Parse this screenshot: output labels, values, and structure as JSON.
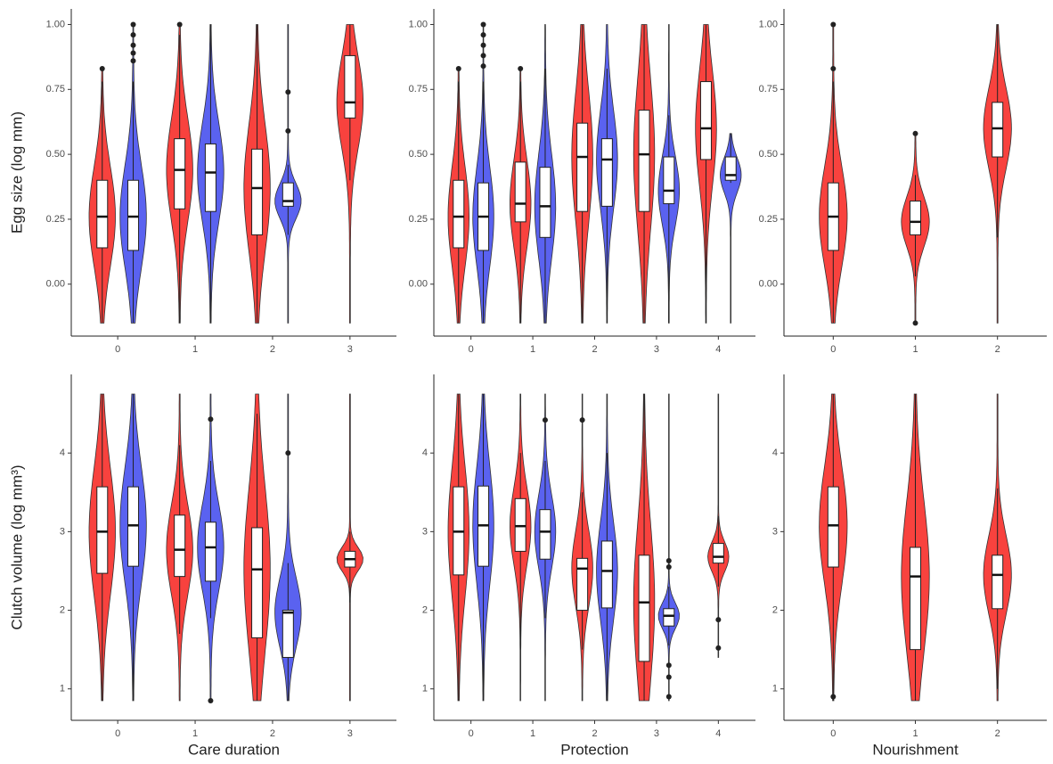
{
  "chart_data": [
    {
      "type": "violin",
      "ylabel": "Egg size (log mm)",
      "categories": [
        "0",
        "1",
        "2",
        "3"
      ],
      "ylim": [
        -0.2,
        1.06
      ],
      "yticks": [
        {
          "value": 0,
          "label": "0.00"
        },
        {
          "value": 0.25,
          "label": "0.25"
        },
        {
          "value": 0.5,
          "label": "0.50"
        },
        {
          "value": 0.75,
          "label": "0.75"
        },
        {
          "value": 1,
          "label": "1.00"
        }
      ],
      "series": [
        {
          "color": "#f8423e",
          "boxes": [
            {
              "range": [
                -0.15,
                0.83
              ],
              "whisker_low": -0.15,
              "q1": 0.14,
              "median": 0.26,
              "q3": 0.4,
              "whisker_high": 0.78,
              "outliers": [
                0.83
              ]
            },
            {
              "range": [
                -0.15,
                1.0
              ],
              "whisker_low": -0.15,
              "q1": 0.29,
              "median": 0.44,
              "q3": 0.56,
              "whisker_high": 0.96,
              "outliers": [
                1.0
              ]
            },
            {
              "range": [
                -0.15,
                1.0
              ],
              "whisker_low": -0.15,
              "q1": 0.19,
              "median": 0.37,
              "q3": 0.52,
              "whisker_high": 1.0,
              "outliers": []
            },
            {
              "range": [
                -0.15,
                1.0
              ],
              "whisker_low": 0.4,
              "q1": 0.64,
              "median": 0.7,
              "q3": 0.88,
              "whisker_high": 1.0,
              "outliers": []
            }
          ]
        },
        {
          "color": "#5a62f0",
          "boxes": [
            {
              "range": [
                -0.15,
                1.0
              ],
              "whisker_low": -0.15,
              "q1": 0.13,
              "median": 0.26,
              "q3": 0.4,
              "whisker_high": 0.78,
              "outliers": [
                0.86,
                0.89,
                0.92,
                0.96,
                1.0
              ]
            },
            {
              "range": [
                -0.15,
                1.0
              ],
              "whisker_low": -0.15,
              "q1": 0.28,
              "median": 0.43,
              "q3": 0.54,
              "whisker_high": 1.0,
              "outliers": []
            },
            {
              "range": [
                -0.15,
                1.0
              ],
              "whisker_low": 0.19,
              "q1": 0.3,
              "median": 0.32,
              "q3": 0.39,
              "whisker_high": 0.46,
              "outliers": [
                0.59,
                0.74
              ]
            },
            null
          ]
        }
      ]
    },
    {
      "type": "violin",
      "categories": [
        "0",
        "1",
        "2",
        "3",
        "4"
      ],
      "ylim": [
        -0.2,
        1.06
      ],
      "yticks": [
        {
          "value": 0,
          "label": "0.00"
        },
        {
          "value": 0.25,
          "label": "0.25"
        },
        {
          "value": 0.5,
          "label": "0.50"
        },
        {
          "value": 0.75,
          "label": "0.75"
        },
        {
          "value": 1,
          "label": "1.00"
        }
      ],
      "series": [
        {
          "color": "#f8423e",
          "boxes": [
            {
              "range": [
                -0.15,
                0.83
              ],
              "whisker_low": -0.15,
              "q1": 0.14,
              "median": 0.26,
              "q3": 0.4,
              "whisker_high": 0.78,
              "outliers": [
                0.83
              ]
            },
            {
              "range": [
                -0.15,
                0.83
              ],
              "whisker_low": -0.15,
              "q1": 0.24,
              "median": 0.31,
              "q3": 0.47,
              "whisker_high": 0.78,
              "outliers": [
                0.83
              ]
            },
            {
              "range": [
                -0.15,
                1.0
              ],
              "whisker_low": -0.15,
              "q1": 0.28,
              "median": 0.49,
              "q3": 0.62,
              "whisker_high": 1.0,
              "outliers": []
            },
            {
              "range": [
                -0.15,
                1.0
              ],
              "whisker_low": -0.15,
              "q1": 0.28,
              "median": 0.5,
              "q3": 0.67,
              "whisker_high": 1.0,
              "outliers": []
            },
            {
              "range": [
                -0.15,
                1.0
              ],
              "whisker_low": -0.15,
              "q1": 0.48,
              "median": 0.6,
              "q3": 0.78,
              "whisker_high": 1.0,
              "outliers": []
            }
          ]
        },
        {
          "color": "#5a62f0",
          "boxes": [
            {
              "range": [
                -0.15,
                1.0
              ],
              "whisker_low": -0.15,
              "q1": 0.13,
              "median": 0.26,
              "q3": 0.39,
              "whisker_high": 0.78,
              "outliers": [
                0.84,
                0.88,
                0.92,
                0.96,
                1.0
              ]
            },
            {
              "range": [
                -0.15,
                1.0
              ],
              "whisker_low": -0.15,
              "q1": 0.18,
              "median": 0.3,
              "q3": 0.45,
              "whisker_high": 0.83,
              "outliers": []
            },
            {
              "range": [
                -0.15,
                1.0
              ],
              "whisker_low": -0.15,
              "q1": 0.3,
              "median": 0.48,
              "q3": 0.56,
              "whisker_high": 0.83,
              "outliers": []
            },
            {
              "range": [
                -0.15,
                1.0
              ],
              "whisker_low": -0.15,
              "q1": 0.31,
              "median": 0.36,
              "q3": 0.49,
              "whisker_high": 0.65,
              "outliers": []
            },
            {
              "range": [
                -0.15,
                0.58
              ],
              "whisker_low": 0.39,
              "q1": 0.4,
              "median": 0.42,
              "q3": 0.49,
              "whisker_high": 0.58,
              "outliers": []
            }
          ]
        }
      ]
    },
    {
      "type": "violin",
      "categories": [
        "0",
        "1",
        "2"
      ],
      "ylim": [
        -0.2,
        1.06
      ],
      "yticks": [
        {
          "value": 0,
          "label": "0.00"
        },
        {
          "value": 0.25,
          "label": "0.25"
        },
        {
          "value": 0.5,
          "label": "0.50"
        },
        {
          "value": 0.75,
          "label": "0.75"
        },
        {
          "value": 1,
          "label": "1.00"
        }
      ],
      "series": [
        {
          "color": "#f8423e",
          "boxes": [
            {
              "range": [
                -0.15,
                1.0
              ],
              "whisker_low": -0.15,
              "q1": 0.13,
              "median": 0.26,
              "q3": 0.39,
              "whisker_high": 0.78,
              "outliers": [
                0.83,
                1.0
              ]
            },
            {
              "range": [
                -0.15,
                0.58
              ],
              "whisker_low": 0.03,
              "q1": 0.19,
              "median": 0.24,
              "q3": 0.32,
              "whisker_high": 0.42,
              "outliers": [
                0.58,
                -0.15
              ]
            },
            {
              "range": [
                -0.15,
                1.0
              ],
              "whisker_low": 0.18,
              "q1": 0.49,
              "median": 0.6,
              "q3": 0.7,
              "whisker_high": 1.0,
              "outliers": []
            }
          ]
        }
      ]
    },
    {
      "type": "violin",
      "ylabel": "Clutch volume (log mm³)",
      "xlabel": "Care duration",
      "categories": [
        "0",
        "1",
        "2",
        "3"
      ],
      "ylim": [
        0.6,
        5
      ],
      "yticks": [
        1,
        2,
        3,
        4
      ],
      "series": [
        {
          "color": "#f8423e",
          "boxes": [
            {
              "range": [
                0.85,
                4.75
              ],
              "whisker_low": 0.85,
              "q1": 2.47,
              "median": 3.0,
              "q3": 3.57,
              "whisker_high": 4.75,
              "outliers": []
            },
            {
              "range": [
                0.85,
                4.75
              ],
              "whisker_low": 1.7,
              "q1": 2.43,
              "median": 2.77,
              "q3": 3.21,
              "whisker_high": 4.1,
              "outliers": []
            },
            {
              "range": [
                0.85,
                4.75
              ],
              "whisker_low": 0.85,
              "q1": 1.65,
              "median": 2.52,
              "q3": 3.05,
              "whisker_high": 4.5,
              "outliers": []
            },
            {
              "range": [
                0.85,
                4.75
              ],
              "whisker_low": 2.1,
              "q1": 2.55,
              "median": 2.65,
              "q3": 2.75,
              "whisker_high": 3.0,
              "outliers": []
            }
          ]
        },
        {
          "color": "#5a62f0",
          "boxes": [
            {
              "range": [
                0.85,
                4.75
              ],
              "whisker_low": 0.85,
              "q1": 2.56,
              "median": 3.08,
              "q3": 3.57,
              "whisker_high": 4.75,
              "outliers": []
            },
            {
              "range": [
                0.85,
                4.75
              ],
              "whisker_low": 1.9,
              "q1": 2.37,
              "median": 2.8,
              "q3": 3.12,
              "whisker_high": 3.9,
              "outliers": [
                4.43,
                0.85
              ]
            },
            {
              "range": [
                0.85,
                4.75
              ],
              "whisker_low": 0.85,
              "q1": 1.4,
              "median": 1.97,
              "q3": 2.0,
              "whisker_high": 2.6,
              "outliers": [
                4.0
              ]
            },
            null
          ]
        }
      ]
    },
    {
      "type": "violin",
      "xlabel": "Protection",
      "categories": [
        "0",
        "1",
        "2",
        "3",
        "4"
      ],
      "ylim": [
        0.6,
        5
      ],
      "yticks": [
        1,
        2,
        3,
        4
      ],
      "series": [
        {
          "color": "#f8423e",
          "boxes": [
            {
              "range": [
                0.85,
                4.75
              ],
              "whisker_low": 0.85,
              "q1": 2.45,
              "median": 3.0,
              "q3": 3.57,
              "whisker_high": 4.75,
              "outliers": []
            },
            {
              "range": [
                0.85,
                4.75
              ],
              "whisker_low": 1.5,
              "q1": 2.75,
              "median": 3.07,
              "q3": 3.42,
              "whisker_high": 4.0,
              "outliers": []
            },
            {
              "range": [
                0.85,
                4.75
              ],
              "whisker_low": 1.5,
              "q1": 2.0,
              "median": 2.53,
              "q3": 2.66,
              "whisker_high": 3.5,
              "outliers": [
                4.42
              ]
            },
            {
              "range": [
                0.85,
                4.75
              ],
              "whisker_low": 0.85,
              "q1": 1.35,
              "median": 2.1,
              "q3": 2.7,
              "whisker_high": 4.75,
              "outliers": []
            },
            {
              "range": [
                1.4,
                4.75
              ],
              "whisker_low": 2.3,
              "q1": 2.6,
              "median": 2.68,
              "q3": 2.85,
              "whisker_high": 3.2,
              "outliers": [
                1.88,
                1.52
              ]
            }
          ]
        },
        {
          "color": "#5a62f0",
          "boxes": [
            {
              "range": [
                0.85,
                4.75
              ],
              "whisker_low": 0.85,
              "q1": 2.56,
              "median": 3.08,
              "q3": 3.58,
              "whisker_high": 4.75,
              "outliers": []
            },
            {
              "range": [
                0.85,
                4.75
              ],
              "whisker_low": 1.9,
              "q1": 2.65,
              "median": 3.0,
              "q3": 3.28,
              "whisker_high": 3.9,
              "outliers": [
                4.42
              ]
            },
            {
              "range": [
                0.85,
                4.75
              ],
              "whisker_low": 0.85,
              "q1": 2.03,
              "median": 2.5,
              "q3": 2.88,
              "whisker_high": 4.0,
              "outliers": []
            },
            {
              "range": [
                0.85,
                4.75
              ],
              "whisker_low": 1.55,
              "q1": 1.8,
              "median": 1.93,
              "q3": 2.02,
              "whisker_high": 2.3,
              "outliers": [
                2.63,
                2.55,
                1.3,
                1.15,
                0.9
              ]
            },
            null
          ]
        }
      ]
    },
    {
      "type": "violin",
      "xlabel": "Nourishment",
      "categories": [
        "0",
        "1",
        "2"
      ],
      "ylim": [
        0.6,
        5
      ],
      "yticks": [
        1,
        2,
        3,
        4
      ],
      "series": [
        {
          "color": "#f8423e",
          "boxes": [
            {
              "range": [
                0.85,
                4.75
              ],
              "whisker_low": 0.85,
              "q1": 2.55,
              "median": 3.08,
              "q3": 3.57,
              "whisker_high": 4.75,
              "outliers": [
                0.9
              ]
            },
            {
              "range": [
                0.85,
                4.75
              ],
              "whisker_low": 0.85,
              "q1": 1.5,
              "median": 2.43,
              "q3": 2.8,
              "whisker_high": 4.75,
              "outliers": []
            },
            {
              "range": [
                0.85,
                4.75
              ],
              "whisker_low": 1.0,
              "q1": 2.02,
              "median": 2.45,
              "q3": 2.7,
              "whisker_high": 3.55,
              "outliers": []
            }
          ]
        }
      ]
    }
  ]
}
